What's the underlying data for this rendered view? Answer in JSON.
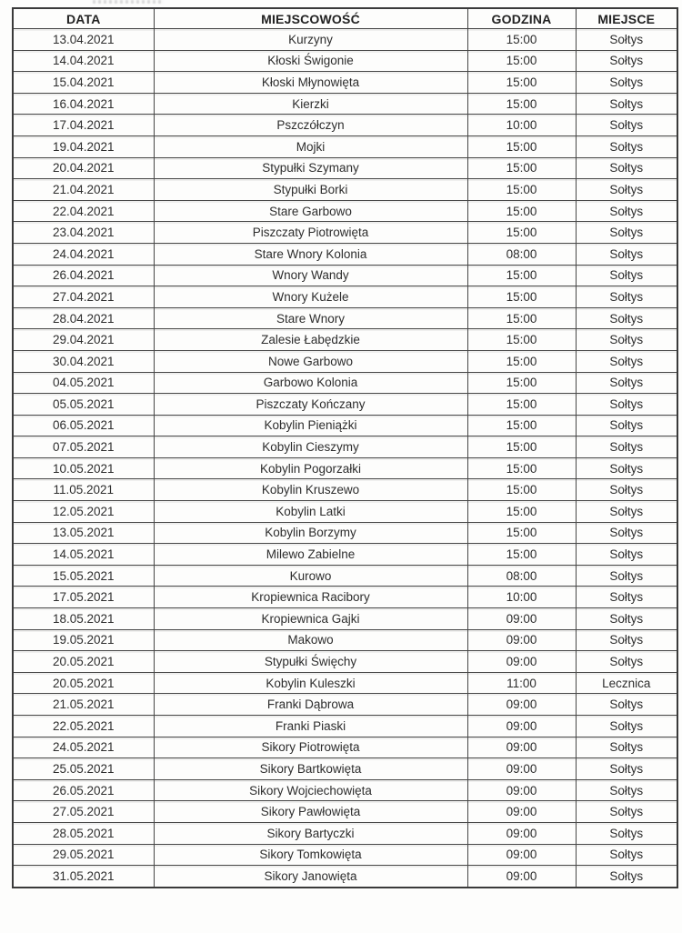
{
  "page": {
    "kind": "scanned-schedule-table",
    "ink_color": "#2d2d2d",
    "border_color": "#3a3a3a",
    "paper_color": "#fdfdfc"
  },
  "table": {
    "columns": [
      "DATA",
      "MIEJSCOWOŚĆ",
      "GODZINA",
      "MIEJSCE"
    ],
    "rows": [
      [
        "13.04.2021",
        "Kurzyny",
        "15:00",
        "Sołtys"
      ],
      [
        "14.04.2021",
        "Kłoski Świgonie",
        "15:00",
        "Sołtys"
      ],
      [
        "15.04.2021",
        "Kłoski Młynowięta",
        "15:00",
        "Sołtys"
      ],
      [
        "16.04.2021",
        "Kierzki",
        "15:00",
        "Sołtys"
      ],
      [
        "17.04.2021",
        "Pszczółczyn",
        "10:00",
        "Sołtys"
      ],
      [
        "19.04.2021",
        "Mojki",
        "15:00",
        "Sołtys"
      ],
      [
        "20.04.2021",
        "Stypułki Szymany",
        "15:00",
        "Sołtys"
      ],
      [
        "21.04.2021",
        "Stypułki Borki",
        "15:00",
        "Sołtys"
      ],
      [
        "22.04.2021",
        "Stare Garbowo",
        "15:00",
        "Sołtys"
      ],
      [
        "23.04.2021",
        "Piszczaty Piotrowięta",
        "15:00",
        "Sołtys"
      ],
      [
        "24.04.2021",
        "Stare Wnory Kolonia",
        "08:00",
        "Sołtys"
      ],
      [
        "26.04.2021",
        "Wnory Wandy",
        "15:00",
        "Sołtys"
      ],
      [
        "27.04.2021",
        "Wnory Kużele",
        "15:00",
        "Sołtys"
      ],
      [
        "28.04.2021",
        "Stare Wnory",
        "15:00",
        "Sołtys"
      ],
      [
        "29.04.2021",
        "Zalesie Łabędzkie",
        "15:00",
        "Sołtys"
      ],
      [
        "30.04.2021",
        "Nowe Garbowo",
        "15:00",
        "Sołtys"
      ],
      [
        "04.05.2021",
        "Garbowo Kolonia",
        "15:00",
        "Sołtys"
      ],
      [
        "05.05.2021",
        "Piszczaty Kończany",
        "15:00",
        "Sołtys"
      ],
      [
        "06.05.2021",
        "Kobylin Pieniążki",
        "15:00",
        "Sołtys"
      ],
      [
        "07.05.2021",
        "Kobylin Cieszymy",
        "15:00",
        "Sołtys"
      ],
      [
        "10.05.2021",
        "Kobylin Pogorzałki",
        "15:00",
        "Sołtys"
      ],
      [
        "11.05.2021",
        "Kobylin Kruszewo",
        "15:00",
        "Sołtys"
      ],
      [
        "12.05.2021",
        "Kobylin Latki",
        "15:00",
        "Sołtys"
      ],
      [
        "13.05.2021",
        "Kobylin Borzymy",
        "15:00",
        "Sołtys"
      ],
      [
        "14.05.2021",
        "Milewo Zabielne",
        "15:00",
        "Sołtys"
      ],
      [
        "15.05.2021",
        "Kurowo",
        "08:00",
        "Sołtys"
      ],
      [
        "17.05.2021",
        "Kropiewnica Racibory",
        "10:00",
        "Sołtys"
      ],
      [
        "18.05.2021",
        "Kropiewnica Gajki",
        "09:00",
        "Sołtys"
      ],
      [
        "19.05.2021",
        "Makowo",
        "09:00",
        "Sołtys"
      ],
      [
        "20.05.2021",
        "Stypułki Święchy",
        "09:00",
        "Sołtys"
      ],
      [
        "20.05.2021",
        "Kobylin Kuleszki",
        "11:00",
        "Lecznica"
      ],
      [
        "21.05.2021",
        "Franki Dąbrowa",
        "09:00",
        "Sołtys"
      ],
      [
        "22.05.2021",
        "Franki Piaski",
        "09:00",
        "Sołtys"
      ],
      [
        "24.05.2021",
        "Sikory Piotrowięta",
        "09:00",
        "Sołtys"
      ],
      [
        "25.05.2021",
        "Sikory Bartkowięta",
        "09:00",
        "Sołtys"
      ],
      [
        "26.05.2021",
        "Sikory Wojciechowięta",
        "09:00",
        "Sołtys"
      ],
      [
        "27.05.2021",
        "Sikory Pawłowięta",
        "09:00",
        "Sołtys"
      ],
      [
        "28.05.2021",
        "Sikory Bartyczki",
        "09:00",
        "Sołtys"
      ],
      [
        "29.05.2021",
        "Sikory Tomkowięta",
        "09:00",
        "Sołtys"
      ],
      [
        "31.05.2021",
        "Sikory Janowięta",
        "09:00",
        "Sołtys"
      ]
    ],
    "column_keys": [
      "data",
      "miejscowosc",
      "godzina",
      "miejsce"
    ]
  }
}
